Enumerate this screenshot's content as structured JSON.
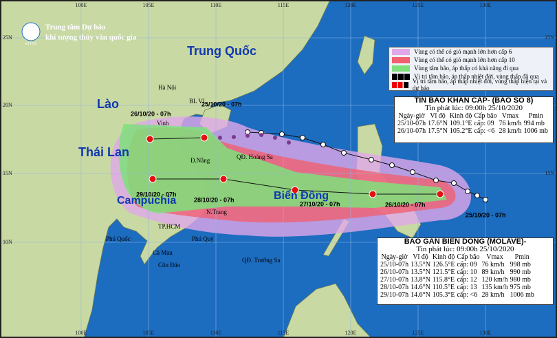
{
  "header": {
    "line1": "Trung tâm Dự báo",
    "line2": "khí tượng thủy văn quốc gia",
    "logo": "KTTVN"
  },
  "axes": {
    "lon": [
      "100E",
      "105E",
      "110E",
      "115E",
      "120E",
      "125E",
      "130E"
    ],
    "lat": [
      "25N",
      "20N",
      "15N",
      "10N"
    ]
  },
  "regions": [
    "Trung Quốc",
    "Lào",
    "Thái Lan",
    "Campuchia",
    "Biển Đông"
  ],
  "places": [
    "Hà Nội",
    "BL Vĩ",
    "Vinh",
    "Đ.Nẵng",
    "QĐ. Hoàng Sa",
    "N.Trang",
    "TP.HCM",
    "Phú Quốc",
    "Cà Mau",
    "Côn Đảo",
    "Phú Quý",
    "QĐ. Trường Sa"
  ],
  "track_labels": [
    "25/10/20 - 07h",
    "26/10/20 - 07h",
    "29/10/20 - 07h",
    "28/10/20 - 07h",
    "27/10/20 - 07h",
    "26/10/20 - 07h",
    "25/10/20 - 07h"
  ],
  "legend": [
    "Vùng có thể có gió mạnh lớn hơn cấp 6",
    "Vùng có thể có gió mạnh lớn hơn cấp 10",
    "Vùng tâm bão, áp thấp có khả năng đi qua",
    "Vị trí tâm bão, áp thấp nhiệt đới, vùng thấp đã qua",
    "Vị trí tâm bão, áp thấp nhiệt đới, vùng thấp hiện tại và dự báo"
  ],
  "bulletin1": {
    "title": "TIN BAO KHAN CAP- (BAO SO 8)",
    "issued": "Tin phát lúc: 09:00h 25/10/2020",
    "header": [
      "Ngày-giờ",
      "Vĩ độ",
      "Kinh độ",
      "Cấp bão",
      "Vmax",
      "Pmin"
    ],
    "rows": [
      [
        "25/10-07h",
        "17.6°N",
        "109.1°E",
        "cấp: 09",
        "76 km/h",
        "994 mb"
      ],
      [
        "26/10-07h",
        "17.5°N",
        "105.2°E",
        "cấp: <6",
        "28 km/h",
        "1006 mb"
      ]
    ]
  },
  "bulletin2": {
    "title": "BAO GAN BIEN DONG (MOLAVE)-",
    "issued": "Tin phát lúc: 09:00h 25/10/2020",
    "header": [
      "Ngày-giờ",
      "Vĩ độ",
      "Kinh độ",
      "Cấp bão",
      "Vmax",
      "Pmin"
    ],
    "rows": [
      [
        "25/10-07h",
        "13.5°N",
        "126.5°E",
        "cấp: 09",
        "76 km/h",
        "998 mb"
      ],
      [
        "26/10-07h",
        "13.5°N",
        "121.5°E",
        "cấp: 10",
        "89 km/h",
        "990 mb"
      ],
      [
        "27/10-07h",
        "13.8°N",
        "115.8°E",
        "cấp: 12",
        "120 km/h",
        "980 mb"
      ],
      [
        "28/10-07h",
        "14.6°N",
        "110.5°E",
        "cấp: 13",
        "135 km/h",
        "975 mb"
      ],
      [
        "29/10-07h",
        "14.6°N",
        "105.3°E",
        "cấp: <6",
        "28 km/h",
        "1006 mb"
      ]
    ]
  }
}
